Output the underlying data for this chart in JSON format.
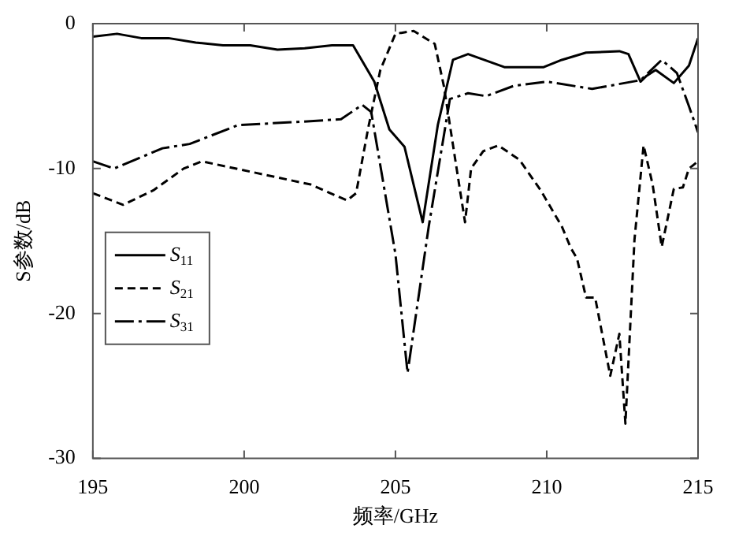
{
  "chart_data": {
    "type": "line",
    "xlabel": "频率/GHz",
    "ylabel": "S参数/dB",
    "xlim": [
      195,
      215
    ],
    "xticks": [
      195,
      200,
      205,
      210,
      215
    ],
    "ylim": [
      -30,
      0
    ],
    "yticks": [
      0,
      -10,
      -20,
      -30
    ],
    "grid": false,
    "legend": "left",
    "marker": "none",
    "series": [
      {
        "name": "S$_{11}$",
        "color": "#000000",
        "line_style": "solid",
        "x": [
          195,
          195.8,
          196.6,
          197.5,
          198.4,
          199.3,
          200.2,
          201.1,
          202,
          202.9,
          203.6,
          204.3,
          204.8,
          205.3,
          205.9,
          206.4,
          206.9,
          207.4,
          208.6,
          209.9,
          210.5,
          211.3,
          212.4,
          212.7,
          213.1,
          213.3,
          213.6,
          214.2,
          214.7,
          215
        ],
        "values": [
          -0.9,
          -0.7,
          -1.0,
          -1.0,
          -1.3,
          -1.5,
          -1.5,
          -1.8,
          -1.7,
          -1.5,
          -1.5,
          -4,
          -7.3,
          -8.5,
          -13.7,
          -7,
          -2.5,
          -2.1,
          -3,
          -3,
          -2.5,
          -2,
          -1.9,
          -2.1,
          -4,
          -3.6,
          -3.2,
          -4.1,
          -2.9,
          -1
        ]
      },
      {
        "name": "S$_{21}$",
        "color": "#000000",
        "line_style": "dashed",
        "x": [
          195,
          196,
          197,
          198,
          198.6,
          200.4,
          202.2,
          203.4,
          203.7,
          204.1,
          204.5,
          205,
          205.6,
          206.3,
          206.6,
          207,
          207.3,
          207.5,
          207.9,
          208.4,
          209.1,
          209.8,
          210.5,
          210.8,
          211,
          211.3,
          211.6,
          212.1,
          212.4,
          212.6,
          212.9,
          213.2,
          213.5,
          213.8,
          214.2,
          214.5,
          214.7,
          215
        ],
        "values": [
          -11.7,
          -12.5,
          -11.5,
          -10,
          -9.5,
          -10.3,
          -11.1,
          -12.2,
          -11.7,
          -7.2,
          -3.2,
          -0.7,
          -0.5,
          -1.4,
          -4.3,
          -9.7,
          -13.7,
          -10,
          -8.8,
          -8.4,
          -9.4,
          -11.5,
          -14,
          -15.5,
          -16.2,
          -18.9,
          -18.9,
          -24.3,
          -21.4,
          -27.6,
          -14.9,
          -8.4,
          -11.1,
          -15.4,
          -11.4,
          -11.3,
          -10,
          -9.5
        ]
      },
      {
        "name": "S$_{31}$",
        "color": "#000000",
        "line_style": "dashdot",
        "x": [
          195,
          195.7,
          197.3,
          198.2,
          199.8,
          201.6,
          203.2,
          203.9,
          204.2,
          205,
          205.4,
          206.1,
          206.8,
          207.4,
          208,
          208.9,
          210,
          211.5,
          213.1,
          213.8,
          214.3,
          214.7,
          215
        ],
        "values": [
          -9.5,
          -10,
          -8.6,
          -8.3,
          -7,
          -6.8,
          -6.6,
          -5.6,
          -6.1,
          -15.9,
          -24.1,
          -14,
          -5.2,
          -4.8,
          -5,
          -4.3,
          -4,
          -4.5,
          -3.9,
          -2.5,
          -3.4,
          -5.7,
          -7.5
        ]
      }
    ]
  }
}
